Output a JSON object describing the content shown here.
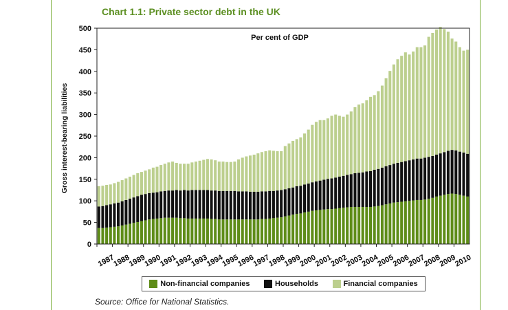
{
  "title": "Chart 1.1: Private sector debt in the UK",
  "source": "Source: Office for National Statistics.",
  "colors": {
    "frame": "#7cae3c",
    "title": "#5c8f22",
    "non_financial": "#5e8c18",
    "households": "#111111",
    "financial": "#bccf8e"
  },
  "chart_data": {
    "type": "bar",
    "stacked": true,
    "title": "Chart 1.1: Private sector debt in the UK",
    "annotation": "Per cent of GDP",
    "xlabel": "",
    "ylabel": "Gross interest-bearing liabilities",
    "ylim": [
      0,
      500
    ],
    "yticks": [
      0,
      50,
      100,
      150,
      200,
      250,
      300,
      350,
      400,
      450,
      500
    ],
    "year_labels": [
      "1987",
      "1988",
      "1989",
      "1990",
      "1991",
      "1992",
      "1993",
      "1994",
      "1995",
      "1996",
      "1997",
      "1998",
      "1999",
      "2000",
      "2001",
      "2002",
      "2003",
      "2004",
      "2005",
      "2006",
      "2007",
      "2008",
      "2009",
      "2010"
    ],
    "legend_position": "bottom",
    "grid": false,
    "categories": [
      "1987 Q1",
      "1987 Q2",
      "1987 Q3",
      "1987 Q4",
      "1988 Q1",
      "1988 Q2",
      "1988 Q3",
      "1988 Q4",
      "1989 Q1",
      "1989 Q2",
      "1989 Q3",
      "1989 Q4",
      "1990 Q1",
      "1990 Q2",
      "1990 Q3",
      "1990 Q4",
      "1991 Q1",
      "1991 Q2",
      "1991 Q3",
      "1991 Q4",
      "1992 Q1",
      "1992 Q2",
      "1992 Q3",
      "1992 Q4",
      "1993 Q1",
      "1993 Q2",
      "1993 Q3",
      "1993 Q4",
      "1994 Q1",
      "1994 Q2",
      "1994 Q3",
      "1994 Q4",
      "1995 Q1",
      "1995 Q2",
      "1995 Q3",
      "1995 Q4",
      "1996 Q1",
      "1996 Q2",
      "1996 Q3",
      "1996 Q4",
      "1997 Q1",
      "1997 Q2",
      "1997 Q3",
      "1997 Q4",
      "1998 Q1",
      "1998 Q2",
      "1998 Q3",
      "1998 Q4",
      "1999 Q1",
      "1999 Q2",
      "1999 Q3",
      "1999 Q4",
      "2000 Q1",
      "2000 Q2",
      "2000 Q3",
      "2000 Q4",
      "2001 Q1",
      "2001 Q2",
      "2001 Q3",
      "2001 Q4",
      "2002 Q1",
      "2002 Q2",
      "2002 Q3",
      "2002 Q4",
      "2003 Q1",
      "2003 Q2",
      "2003 Q3",
      "2003 Q4",
      "2004 Q1",
      "2004 Q2",
      "2004 Q3",
      "2004 Q4",
      "2005 Q1",
      "2005 Q2",
      "2005 Q3",
      "2005 Q4",
      "2006 Q1",
      "2006 Q2",
      "2006 Q3",
      "2006 Q4",
      "2007 Q1",
      "2007 Q2",
      "2007 Q3",
      "2007 Q4",
      "2008 Q1",
      "2008 Q2",
      "2008 Q3",
      "2008 Q4",
      "2009 Q1",
      "2009 Q2",
      "2009 Q3",
      "2009 Q4",
      "2010 Q1",
      "2010 Q2",
      "2010 Q3",
      "2010 Q4"
    ],
    "series": [
      {
        "name": "Non-financial companies",
        "values": [
          37,
          37,
          38,
          39,
          40,
          41,
          43,
          45,
          47,
          49,
          51,
          53,
          55,
          57,
          58,
          59,
          60,
          61,
          61,
          61,
          61,
          60,
          60,
          59,
          59,
          59,
          59,
          59,
          59,
          58,
          58,
          57,
          57,
          57,
          57,
          57,
          57,
          57,
          57,
          57,
          57,
          57,
          58,
          58,
          59,
          60,
          61,
          62,
          64,
          66,
          68,
          70,
          71,
          73,
          75,
          77,
          78,
          79,
          80,
          81,
          81,
          82,
          83,
          84,
          85,
          86,
          86,
          86,
          86,
          86,
          86,
          87,
          88,
          90,
          92,
          94,
          96,
          97,
          98,
          99,
          100,
          101,
          102,
          102,
          103,
          105,
          107,
          110,
          112,
          114,
          116,
          117,
          116,
          114,
          112,
          110
        ]
      },
      {
        "name": "Households",
        "values": [
          50,
          51,
          52,
          53,
          54,
          55,
          56,
          57,
          58,
          59,
          60,
          61,
          61,
          61,
          61,
          61,
          62,
          62,
          63,
          63,
          64,
          64,
          65,
          65,
          66,
          66,
          66,
          66,
          66,
          66,
          66,
          66,
          66,
          66,
          66,
          66,
          65,
          65,
          65,
          64,
          64,
          64,
          64,
          64,
          64,
          63,
          63,
          63,
          63,
          63,
          63,
          64,
          64,
          65,
          65,
          66,
          67,
          68,
          69,
          70,
          71,
          72,
          73,
          74,
          75,
          76,
          78,
          79,
          80,
          82,
          83,
          85,
          86,
          87,
          88,
          89,
          90,
          91,
          92,
          93,
          94,
          95,
          96,
          96,
          97,
          97,
          97,
          97,
          98,
          99,
          100,
          101,
          101,
          100,
          100,
          99
        ]
      },
      {
        "name": "Financial companies",
        "values": [
          47,
          47,
          47,
          46,
          47,
          48,
          49,
          50,
          51,
          52,
          53,
          53,
          54,
          55,
          58,
          59,
          61,
          63,
          65,
          67,
          63,
          62,
          61,
          62,
          64,
          66,
          68,
          70,
          72,
          72,
          70,
          68,
          68,
          67,
          67,
          68,
          74,
          78,
          81,
          84,
          86,
          89,
          91,
          93,
          94,
          93,
          91,
          90,
          100,
          104,
          108,
          109,
          112,
          118,
          125,
          133,
          138,
          140,
          138,
          140,
          145,
          146,
          141,
          137,
          140,
          145,
          153,
          158,
          160,
          165,
          172,
          173,
          180,
          190,
          204,
          218,
          230,
          240,
          246,
          252,
          245,
          250,
          258,
          258,
          260,
          278,
          285,
          290,
          293,
          285,
          276,
          258,
          252,
          242,
          236,
          241
        ]
      }
    ]
  }
}
